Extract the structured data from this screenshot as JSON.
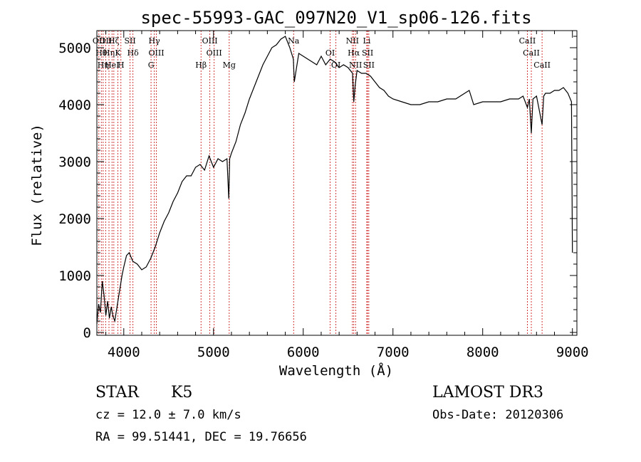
{
  "chart_data": {
    "type": "line",
    "title": "spec-55993-GAC_097N20_V1_sp06-126.fits",
    "xlabel": "Wavelength (Å)",
    "ylabel": "Flux (relative)",
    "xlim": [
      3700,
      9050
    ],
    "ylim": [
      -50,
      5300
    ],
    "x_ticks": [
      4000,
      5000,
      6000,
      7000,
      8000,
      9000
    ],
    "x_tick_labels": [
      "4000",
      "5000",
      "6000",
      "7000",
      "8000",
      "9000"
    ],
    "y_ticks": [
      0,
      1000,
      2000,
      3000,
      4000,
      5000
    ],
    "y_tick_labels": [
      "0",
      "1000",
      "2000",
      "3000",
      "4000",
      "5000"
    ],
    "grid": false,
    "series": [
      {
        "name": "spectrum",
        "x": [
          3700,
          3720,
          3740,
          3760,
          3780,
          3800,
          3820,
          3840,
          3860,
          3880,
          3900,
          3920,
          3940,
          3960,
          3980,
          4000,
          4030,
          4060,
          4100,
          4150,
          4200,
          4250,
          4300,
          4350,
          4400,
          4450,
          4500,
          4550,
          4600,
          4650,
          4700,
          4750,
          4800,
          4850,
          4900,
          4950,
          5000,
          5050,
          5100,
          5150,
          5170,
          5180,
          5200,
          5250,
          5300,
          5350,
          5400,
          5450,
          5500,
          5550,
          5600,
          5650,
          5700,
          5750,
          5800,
          5850,
          5890,
          5900,
          5950,
          6000,
          6050,
          6100,
          6150,
          6200,
          6250,
          6300,
          6350,
          6400,
          6450,
          6500,
          6550,
          6563,
          6580,
          6600,
          6650,
          6700,
          6750,
          6800,
          6850,
          6900,
          6950,
          7000,
          7100,
          7200,
          7300,
          7400,
          7500,
          7600,
          7700,
          7800,
          7850,
          7900,
          8000,
          8100,
          8200,
          8300,
          8400,
          8450,
          8498,
          8520,
          8542,
          8560,
          8600,
          8662,
          8680,
          8700,
          8750,
          8800,
          8850,
          8900,
          8950,
          8990,
          9000
        ],
        "y": [
          150,
          500,
          350,
          900,
          650,
          300,
          550,
          250,
          450,
          280,
          200,
          400,
          600,
          800,
          1000,
          1150,
          1350,
          1400,
          1250,
          1200,
          1100,
          1150,
          1300,
          1500,
          1750,
          1950,
          2100,
          2300,
          2450,
          2650,
          2750,
          2750,
          2900,
          2950,
          2850,
          3100,
          2900,
          3050,
          3000,
          3050,
          2350,
          3050,
          3150,
          3350,
          3650,
          3850,
          4100,
          4300,
          4500,
          4700,
          4850,
          5000,
          5050,
          5150,
          5200,
          5000,
          4800,
          4400,
          4900,
          4850,
          4800,
          4750,
          4700,
          4850,
          4700,
          4800,
          4750,
          4650,
          4700,
          4650,
          4550,
          4050,
          4350,
          4600,
          4550,
          4550,
          4500,
          4400,
          4300,
          4250,
          4150,
          4100,
          4050,
          4000,
          4000,
          4050,
          4050,
          4100,
          4100,
          4200,
          4250,
          4000,
          4050,
          4050,
          4050,
          4100,
          4100,
          4150,
          3950,
          4100,
          3500,
          4100,
          4150,
          3650,
          4150,
          4200,
          4200,
          4250,
          4250,
          4300,
          4200,
          4050,
          1400
        ]
      }
    ],
    "line_marks": [
      {
        "wave": 3722,
        "label": "OII"
      },
      {
        "wave": 3750,
        "label": "Hθ"
      },
      {
        "wave": 3770,
        "label": "Hη"
      },
      {
        "wave": 3798,
        "label": "OII"
      },
      {
        "wave": 3835,
        "label": "Hη"
      },
      {
        "wave": 3869,
        "label": "HeI"
      },
      {
        "wave": 3889,
        "label": "Hζ"
      },
      {
        "wave": 3934,
        "label": "K"
      },
      {
        "wave": 3968,
        "label": "H"
      },
      {
        "wave": 4070,
        "label": "SII"
      },
      {
        "wave": 4102,
        "label": "Hδ"
      },
      {
        "wave": 4304,
        "label": "G"
      },
      {
        "wave": 4340,
        "label": "Hγ"
      },
      {
        "wave": 4363,
        "label": "OIII"
      },
      {
        "wave": 4861,
        "label": "Hβ"
      },
      {
        "wave": 4959,
        "label": "OIII"
      },
      {
        "wave": 5007,
        "label": "OIII"
      },
      {
        "wave": 5175,
        "label": "Mg"
      },
      {
        "wave": 5893,
        "label": "Na"
      },
      {
        "wave": 6300,
        "label": "OI"
      },
      {
        "wave": 6364,
        "label": "OI"
      },
      {
        "wave": 6548,
        "label": "NII"
      },
      {
        "wave": 6563,
        "label": "Hα"
      },
      {
        "wave": 6583,
        "label": "NII"
      },
      {
        "wave": 6708,
        "label": "Li"
      },
      {
        "wave": 6717,
        "label": "SII"
      },
      {
        "wave": 6731,
        "label": "SII"
      },
      {
        "wave": 8498,
        "label": "CaII"
      },
      {
        "wave": 8542,
        "label": "CaII"
      },
      {
        "wave": 8662,
        "label": "CaII"
      }
    ]
  },
  "footer": {
    "object_type": "STAR",
    "subclass": "K5",
    "redshift": "cz = 12.0 ± 7.0 km/s",
    "coords": "RA =  99.51441, DEC =  19.76656",
    "survey": "LAMOST DR3",
    "obs_date": "Obs-Date: 20120306"
  }
}
